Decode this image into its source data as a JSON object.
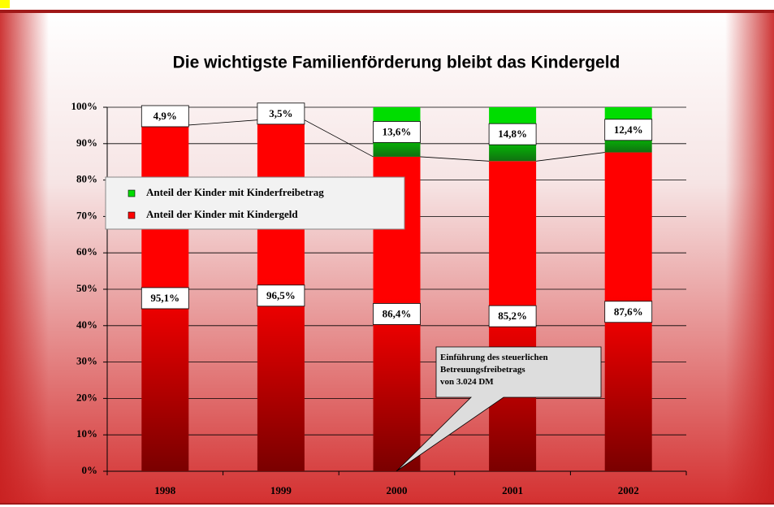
{
  "chart_data": {
    "type": "stacked_bar",
    "title": "Die wichtigste Familienförderung bleibt das Kindergeld",
    "categories": [
      "1998",
      "1999",
      "2000",
      "2001",
      "2002"
    ],
    "series": [
      {
        "name": "Anteil der Kinder mit Kindergeld",
        "color": "#ff0000",
        "values": [
          95.1,
          96.5,
          86.4,
          85.2,
          87.6
        ],
        "value_labels": [
          "95,1%",
          "96,5%",
          "86,4%",
          "85,2%",
          "87,6%"
        ]
      },
      {
        "name": "Anteil der Kinder mit Kinderfreibetrag",
        "color": "#00dd00",
        "values": [
          4.9,
          3.5,
          13.6,
          14.8,
          12.4
        ],
        "value_labels": [
          "4,9%",
          "3,5%",
          "13,6%",
          "14,8%",
          "12,4%"
        ]
      }
    ],
    "ylim": [
      0,
      100
    ],
    "yticks": [
      {
        "value": 0,
        "label": "0%"
      },
      {
        "value": 10,
        "label": "10%"
      },
      {
        "value": 20,
        "label": "20%"
      },
      {
        "value": 30,
        "label": "30%"
      },
      {
        "value": 40,
        "label": "40%"
      },
      {
        "value": 50,
        "label": "50%"
      },
      {
        "value": 60,
        "label": "60%"
      },
      {
        "value": 70,
        "label": "70%"
      },
      {
        "value": 80,
        "label": "80%"
      },
      {
        "value": 90,
        "label": "90%"
      },
      {
        "value": 100,
        "label": "100%"
      }
    ],
    "grid": true,
    "legend": "upper left",
    "annotation": [
      "Einführung des steuerlichen",
      "Betreuungsfreibetrags",
      "von 3.024 DM"
    ]
  }
}
